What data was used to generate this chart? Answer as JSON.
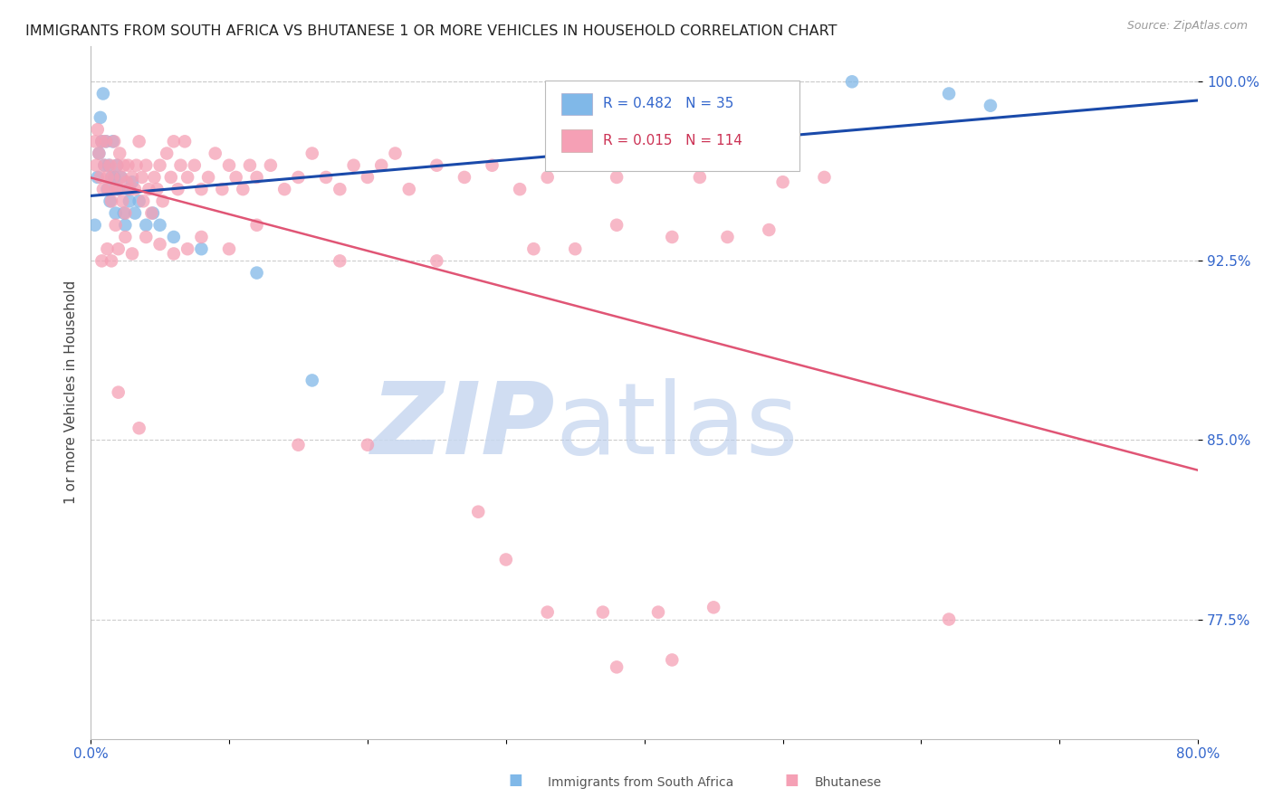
{
  "title": "IMMIGRANTS FROM SOUTH AFRICA VS BHUTANESE 1 OR MORE VEHICLES IN HOUSEHOLD CORRELATION CHART",
  "source": "Source: ZipAtlas.com",
  "ylabel": "1 or more Vehicles in Household",
  "xlim": [
    0.0,
    0.8
  ],
  "ylim": [
    0.725,
    1.015
  ],
  "xtick_labels": [
    "0.0%",
    "",
    "",
    "",
    "",
    "",
    "",
    "",
    "80.0%"
  ],
  "xtick_vals": [
    0.0,
    0.1,
    0.2,
    0.3,
    0.4,
    0.5,
    0.6,
    0.7,
    0.8
  ],
  "ytick_labels": [
    "77.5%",
    "85.0%",
    "92.5%",
    "100.0%"
  ],
  "ytick_vals": [
    0.775,
    0.85,
    0.925,
    1.0
  ],
  "south_africa_color": "#80b8e8",
  "bhutanese_color": "#f5a0b5",
  "trend_blue_color": "#1a4aaa",
  "trend_pink_color": "#e05575",
  "background_color": "#ffffff",
  "sa_x": [
    0.003,
    0.005,
    0.006,
    0.007,
    0.008,
    0.009,
    0.01,
    0.011,
    0.012,
    0.013,
    0.014,
    0.015,
    0.016,
    0.017,
    0.018,
    0.019,
    0.02,
    0.022,
    0.024,
    0.025,
    0.027,
    0.028,
    0.03,
    0.032,
    0.035,
    0.04,
    0.045,
    0.05,
    0.06,
    0.08,
    0.12,
    0.16,
    0.55,
    0.62,
    0.65
  ],
  "sa_y": [
    0.94,
    0.96,
    0.97,
    0.985,
    0.975,
    0.995,
    0.965,
    0.975,
    0.955,
    0.965,
    0.95,
    0.96,
    0.975,
    0.96,
    0.945,
    0.965,
    0.955,
    0.96,
    0.945,
    0.94,
    0.955,
    0.95,
    0.958,
    0.945,
    0.95,
    0.94,
    0.945,
    0.94,
    0.935,
    0.93,
    0.92,
    0.875,
    1.0,
    0.995,
    0.99
  ],
  "bh_x": [
    0.003,
    0.004,
    0.005,
    0.006,
    0.007,
    0.008,
    0.009,
    0.01,
    0.011,
    0.012,
    0.013,
    0.014,
    0.015,
    0.016,
    0.017,
    0.018,
    0.018,
    0.019,
    0.02,
    0.021,
    0.022,
    0.023,
    0.024,
    0.025,
    0.026,
    0.027,
    0.028,
    0.03,
    0.032,
    0.033,
    0.035,
    0.037,
    0.038,
    0.04,
    0.042,
    0.044,
    0.046,
    0.048,
    0.05,
    0.052,
    0.055,
    0.058,
    0.06,
    0.063,
    0.065,
    0.068,
    0.07,
    0.075,
    0.08,
    0.085,
    0.09,
    0.095,
    0.1,
    0.105,
    0.11,
    0.115,
    0.12,
    0.13,
    0.14,
    0.15,
    0.16,
    0.17,
    0.18,
    0.19,
    0.2,
    0.21,
    0.22,
    0.23,
    0.25,
    0.27,
    0.29,
    0.31,
    0.33,
    0.35,
    0.38,
    0.41,
    0.44,
    0.47,
    0.5,
    0.53,
    0.008,
    0.012,
    0.015,
    0.02,
    0.025,
    0.03,
    0.04,
    0.05,
    0.06,
    0.07,
    0.08,
    0.1,
    0.12,
    0.18,
    0.25,
    0.32,
    0.35,
    0.38,
    0.42,
    0.46,
    0.49,
    0.02,
    0.035,
    0.15,
    0.2,
    0.28,
    0.3,
    0.33,
    0.37,
    0.41,
    0.45,
    0.38,
    0.42,
    0.62
  ],
  "bh_y": [
    0.975,
    0.965,
    0.98,
    0.97,
    0.96,
    0.975,
    0.955,
    0.965,
    0.975,
    0.96,
    0.955,
    0.965,
    0.95,
    0.96,
    0.975,
    0.955,
    0.94,
    0.965,
    0.955,
    0.97,
    0.96,
    0.95,
    0.965,
    0.945,
    0.958,
    0.965,
    0.955,
    0.96,
    0.955,
    0.965,
    0.975,
    0.96,
    0.95,
    0.965,
    0.955,
    0.945,
    0.96,
    0.955,
    0.965,
    0.95,
    0.97,
    0.96,
    0.975,
    0.955,
    0.965,
    0.975,
    0.96,
    0.965,
    0.955,
    0.96,
    0.97,
    0.955,
    0.965,
    0.96,
    0.955,
    0.965,
    0.96,
    0.965,
    0.955,
    0.96,
    0.97,
    0.96,
    0.955,
    0.965,
    0.96,
    0.965,
    0.97,
    0.955,
    0.965,
    0.96,
    0.965,
    0.955,
    0.96,
    0.965,
    0.96,
    0.97,
    0.96,
    0.965,
    0.958,
    0.96,
    0.925,
    0.93,
    0.925,
    0.93,
    0.935,
    0.928,
    0.935,
    0.932,
    0.928,
    0.93,
    0.935,
    0.93,
    0.94,
    0.925,
    0.925,
    0.93,
    0.93,
    0.94,
    0.935,
    0.935,
    0.938,
    0.87,
    0.855,
    0.848,
    0.848,
    0.82,
    0.8,
    0.778,
    0.778,
    0.778,
    0.78,
    0.755,
    0.758,
    0.775
  ]
}
